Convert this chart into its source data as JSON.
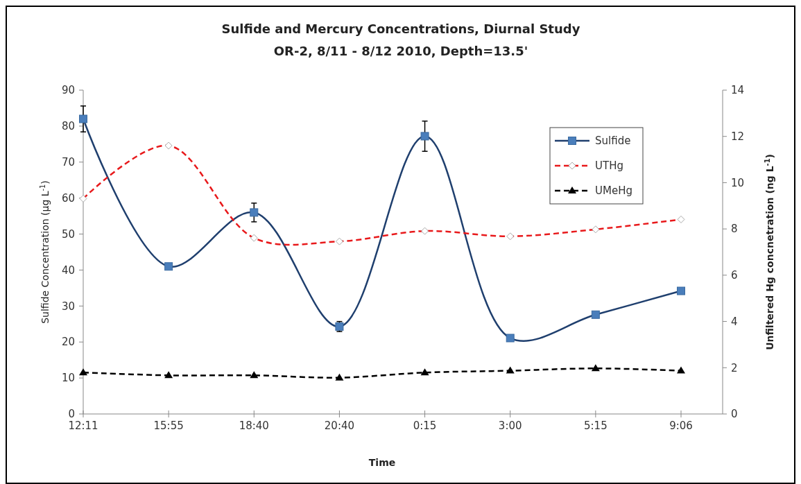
{
  "chart_data": {
    "type": "line",
    "title": "Sulfide  and Mercury Concentrations, Diurnal Study",
    "subtitle": "OR-2, 8/11 - 8/12 2010, Depth=13.5'",
    "xlabel": "Time",
    "ylabel": "Sulfide Concentration (µg L$^{-1}$)",
    "y2label": "Unfiltered Hg concnetration (ng L$^{-1}$)",
    "categories": [
      "12:11",
      "15:55",
      "18:40",
      "20:40",
      "0:15",
      "3:00",
      "5:15",
      "9:06"
    ],
    "ylim": [
      0,
      90
    ],
    "yticks": [
      0,
      10,
      20,
      30,
      40,
      50,
      60,
      70,
      80,
      90
    ],
    "y2lim": [
      0,
      14
    ],
    "y2ticks": [
      0,
      2,
      4,
      6,
      8,
      10,
      12,
      14
    ],
    "grid": false,
    "legend": "top right",
    "series": [
      {
        "name": "Sulfide",
        "color": "#1f3f6e",
        "values": [
          82,
          41,
          56,
          24.3,
          77.2,
          21.1,
          27.6,
          34.2
        ],
        "errors": [
          3.6,
          null,
          2.6,
          1.4,
          4.2,
          null,
          null,
          null
        ],
        "marker": "square",
        "line_style": "solid"
      },
      {
        "name": "UTHg",
        "color": "#e8191b",
        "values": [
          9.31,
          11.6,
          7.61,
          7.46,
          7.91,
          7.68,
          7.98,
          8.41
        ],
        "axis": "y2",
        "marker": "diamond",
        "line_style": "dashed"
      },
      {
        "name": "UMeHg",
        "color": "#000000",
        "values": [
          1.79,
          1.67,
          1.67,
          1.57,
          1.79,
          1.87,
          1.97,
          1.87
        ],
        "axis": "y2",
        "marker": "triangle",
        "line_style": "dashed"
      }
    ]
  }
}
